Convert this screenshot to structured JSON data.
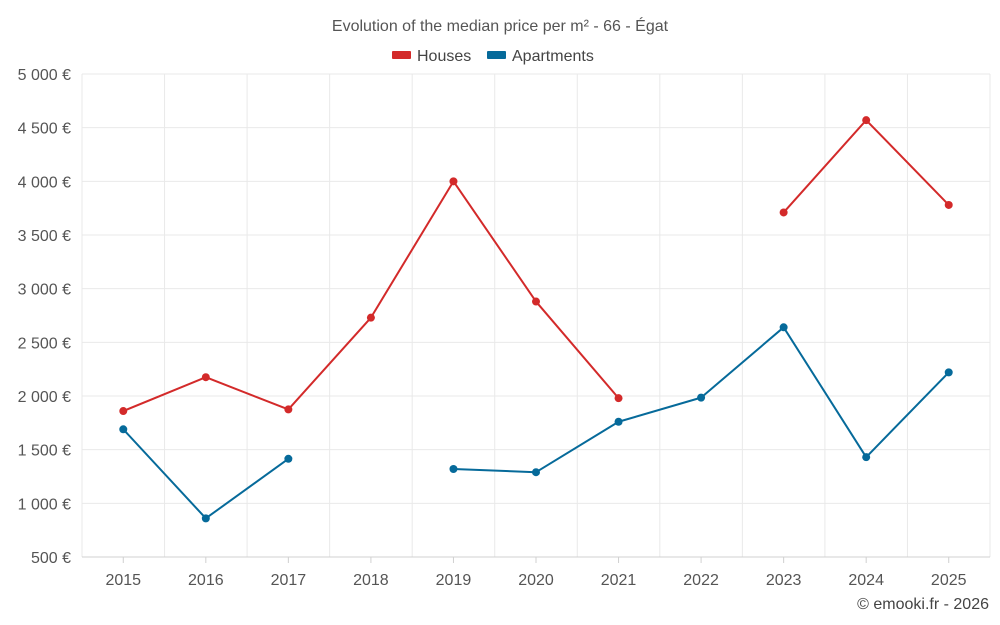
{
  "chart_data": {
    "type": "line",
    "title": "Evolution of the median price per m² - 66 - Égat",
    "categories": [
      "2015",
      "2016",
      "2017",
      "2018",
      "2019",
      "2020",
      "2021",
      "2022",
      "2023",
      "2024",
      "2025"
    ],
    "y_tick_labels": [
      "500 €",
      "1 000 €",
      "1 500 €",
      "2 000 €",
      "2 500 €",
      "3 000 €",
      "3 500 €",
      "4 000 €",
      "4 500 €",
      "5 000 €"
    ],
    "ylim": [
      500,
      5000
    ],
    "y_tick_step": 500,
    "grid": true,
    "legend_position": "top-center",
    "series": [
      {
        "name": "Houses",
        "color": "#d32a2a",
        "values": [
          1860,
          2175,
          1875,
          2730,
          4000,
          2880,
          1980,
          null,
          3710,
          4570,
          3780
        ]
      },
      {
        "name": "Apartments",
        "color": "#066a9a",
        "values": [
          1690,
          860,
          1415,
          null,
          1320,
          1290,
          1760,
          1985,
          2640,
          1430,
          2220
        ]
      }
    ]
  },
  "footer": "© emooki.fr - 2026"
}
